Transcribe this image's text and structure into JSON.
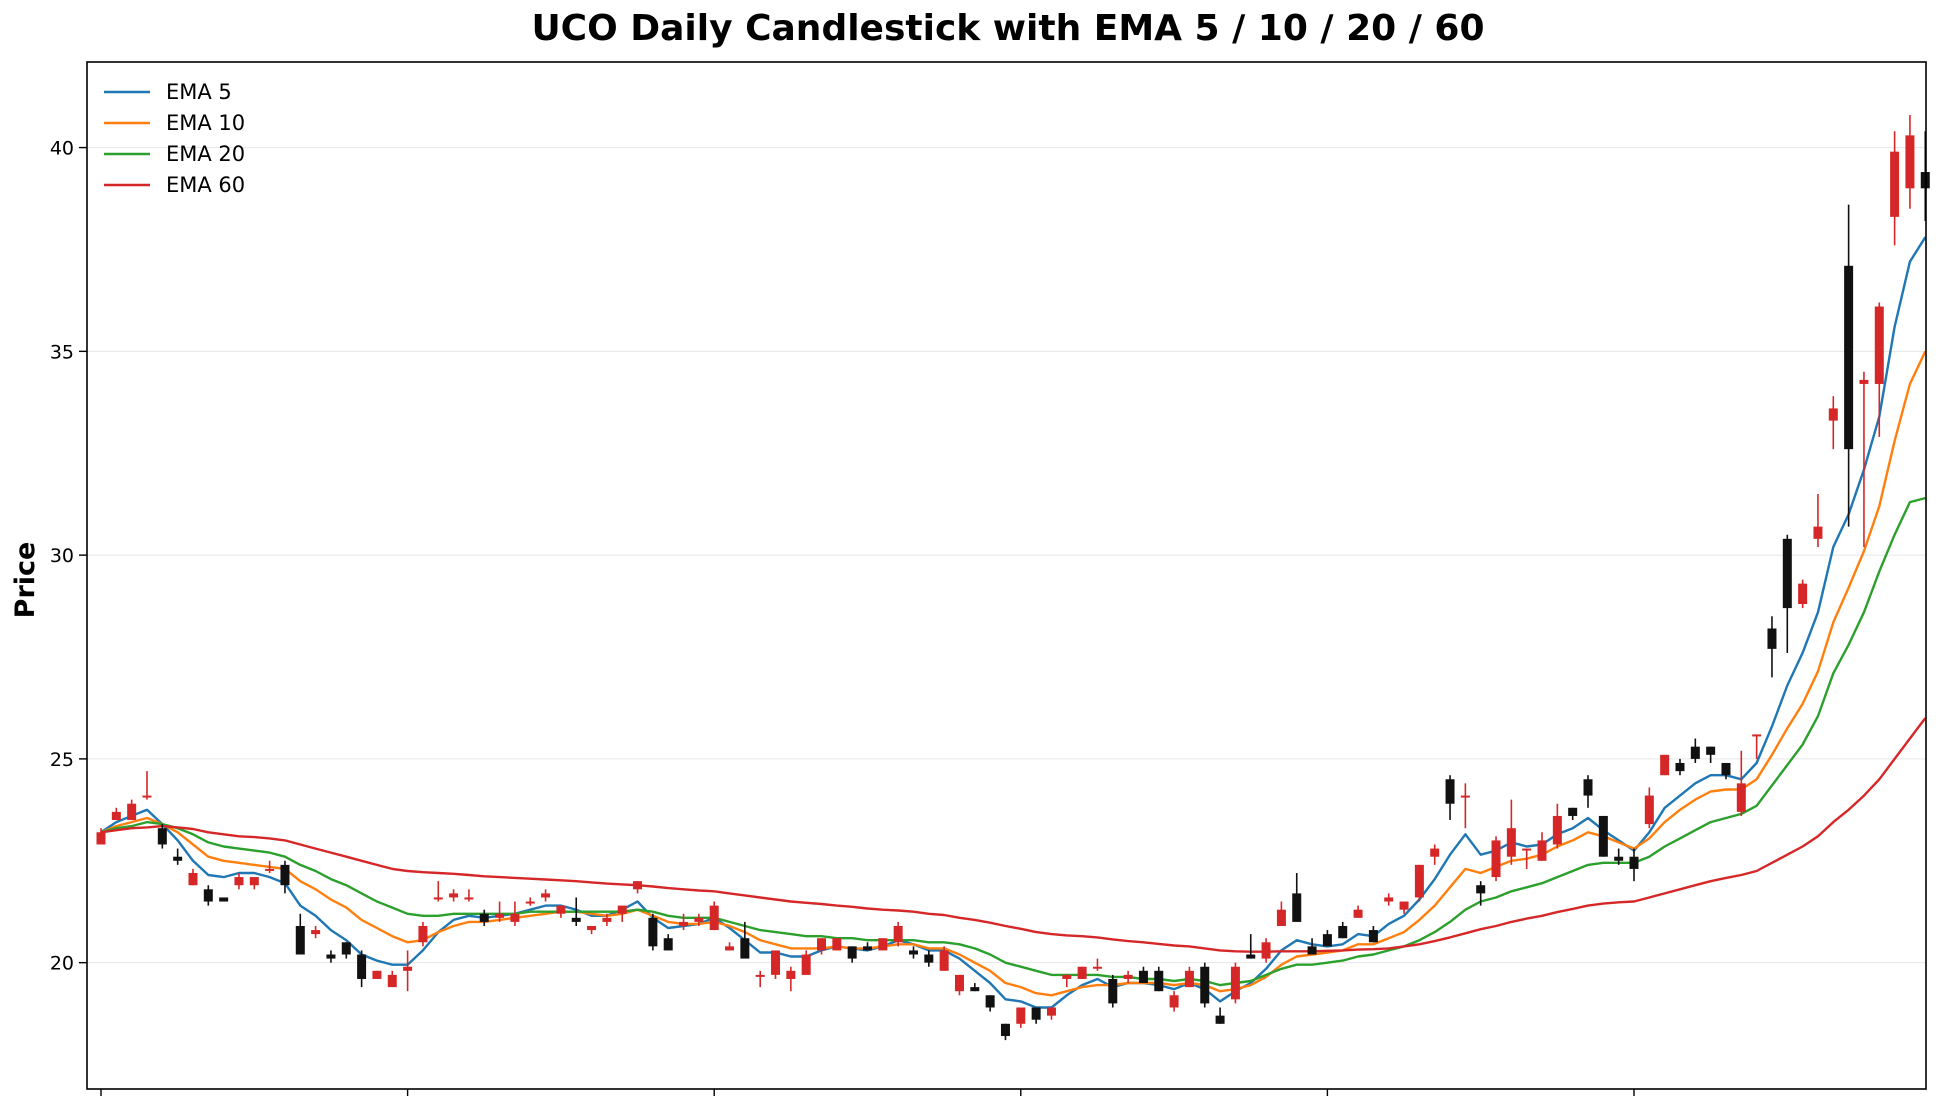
{
  "chart_data": {
    "type": "candlestick",
    "title": "UCO Daily Candlestick with EMA 5 / 10 / 20 / 60",
    "ylabel": "Price",
    "xlabel": "",
    "ylim": [
      16.9,
      42.1
    ],
    "yticks": [
      20,
      25,
      30,
      35,
      40
    ],
    "legend_position": "top-left",
    "grid": "horizontal",
    "up_color": "#d62728",
    "down_color": "#111111",
    "candles": [
      [
        22.9,
        23.3,
        22.9,
        23.2
      ],
      [
        23.5,
        23.8,
        23.5,
        23.7
      ],
      [
        23.5,
        24.0,
        23.5,
        23.9
      ],
      [
        24.1,
        24.7,
        24.0,
        24.1
      ],
      [
        23.3,
        23.4,
        22.8,
        22.9
      ],
      [
        22.6,
        22.8,
        22.4,
        22.5
      ],
      [
        21.9,
        22.3,
        21.9,
        22.2
      ],
      [
        21.8,
        21.9,
        21.4,
        21.5
      ],
      [
        21.6,
        21.6,
        21.5,
        21.5
      ],
      [
        21.9,
        22.2,
        21.8,
        22.1
      ],
      [
        21.9,
        22.1,
        21.8,
        22.1
      ],
      [
        22.3,
        22.5,
        22.2,
        22.3
      ],
      [
        22.4,
        22.5,
        21.7,
        21.9
      ],
      [
        20.9,
        21.2,
        20.2,
        20.2
      ],
      [
        20.7,
        20.9,
        20.6,
        20.8
      ],
      [
        20.2,
        20.3,
        20.0,
        20.1
      ],
      [
        20.5,
        20.5,
        20.1,
        20.2
      ],
      [
        20.2,
        20.3,
        19.4,
        19.6
      ],
      [
        19.6,
        19.8,
        19.6,
        19.8
      ],
      [
        19.4,
        19.8,
        19.4,
        19.7
      ],
      [
        19.8,
        20.3,
        19.3,
        19.9
      ],
      [
        20.5,
        21.0,
        20.4,
        20.9
      ],
      [
        21.6,
        22.0,
        21.5,
        21.6
      ],
      [
        21.6,
        21.8,
        21.5,
        21.7
      ],
      [
        21.6,
        21.8,
        21.5,
        21.6
      ],
      [
        21.2,
        21.3,
        20.9,
        21.0
      ],
      [
        21.1,
        21.5,
        21.0,
        21.2
      ],
      [
        21.0,
        21.5,
        20.9,
        21.2
      ],
      [
        21.5,
        21.6,
        21.4,
        21.5
      ],
      [
        21.6,
        21.8,
        21.5,
        21.7
      ],
      [
        21.2,
        21.4,
        21.1,
        21.4
      ],
      [
        21.1,
        21.6,
        20.9,
        21.0
      ],
      [
        20.8,
        20.9,
        20.7,
        20.9
      ],
      [
        21.0,
        21.2,
        20.9,
        21.1
      ],
      [
        21.2,
        21.4,
        21.0,
        21.4
      ],
      [
        21.8,
        22.0,
        21.7,
        22.0
      ],
      [
        21.1,
        21.2,
        20.3,
        20.4
      ],
      [
        20.6,
        20.7,
        20.3,
        20.3
      ],
      [
        20.9,
        21.2,
        20.8,
        21.0
      ],
      [
        21.0,
        21.2,
        20.9,
        21.1
      ],
      [
        20.8,
        21.5,
        20.8,
        21.4
      ],
      [
        20.3,
        20.5,
        20.3,
        20.4
      ],
      [
        20.6,
        21.0,
        20.2,
        20.1
      ],
      [
        19.7,
        19.8,
        19.4,
        19.7
      ],
      [
        19.7,
        20.3,
        19.6,
        20.3
      ],
      [
        19.6,
        19.9,
        19.3,
        19.8
      ],
      [
        19.7,
        20.3,
        19.7,
        20.2
      ],
      [
        20.3,
        20.6,
        20.2,
        20.6
      ],
      [
        20.3,
        20.6,
        20.3,
        20.6
      ],
      [
        20.4,
        20.4,
        20.0,
        20.1
      ],
      [
        20.4,
        20.5,
        20.3,
        20.3
      ],
      [
        20.3,
        20.6,
        20.3,
        20.6
      ],
      [
        20.5,
        21.0,
        20.4,
        20.9
      ],
      [
        20.3,
        20.4,
        20.1,
        20.2
      ],
      [
        20.2,
        20.3,
        19.9,
        20.0
      ],
      [
        19.8,
        20.4,
        19.8,
        20.3
      ],
      [
        19.3,
        19.7,
        19.2,
        19.7
      ],
      [
        19.4,
        19.5,
        19.3,
        19.3
      ],
      [
        19.2,
        19.2,
        18.8,
        18.9
      ],
      [
        18.5,
        18.5,
        18.1,
        18.2
      ],
      [
        18.5,
        18.9,
        18.4,
        18.9
      ],
      [
        18.9,
        18.9,
        18.5,
        18.6
      ],
      [
        18.7,
        18.9,
        18.6,
        18.9
      ],
      [
        19.6,
        19.7,
        19.4,
        19.7
      ],
      [
        19.6,
        19.9,
        19.6,
        19.9
      ],
      [
        19.9,
        20.1,
        19.8,
        19.9
      ],
      [
        19.6,
        19.7,
        18.9,
        19.0
      ],
      [
        19.6,
        19.8,
        19.5,
        19.7
      ],
      [
        19.8,
        19.9,
        19.5,
        19.5
      ],
      [
        19.8,
        19.9,
        19.3,
        19.3
      ],
      [
        18.9,
        19.3,
        18.8,
        19.2
      ],
      [
        19.4,
        19.9,
        19.4,
        19.8
      ],
      [
        19.9,
        20.0,
        18.9,
        19.0
      ],
      [
        18.7,
        18.9,
        18.5,
        18.5
      ],
      [
        19.1,
        20.0,
        19.0,
        19.9
      ],
      [
        20.2,
        20.7,
        20.1,
        20.1
      ],
      [
        20.1,
        20.6,
        20.0,
        20.5
      ],
      [
        20.9,
        21.5,
        20.9,
        21.3
      ],
      [
        21.7,
        22.2,
        21.0,
        21.0
      ],
      [
        20.4,
        20.6,
        20.2,
        20.2
      ],
      [
        20.7,
        20.8,
        20.4,
        20.4
      ],
      [
        20.9,
        21.0,
        20.6,
        20.6
      ],
      [
        21.1,
        21.4,
        21.1,
        21.3
      ],
      [
        20.8,
        20.9,
        20.5,
        20.5
      ],
      [
        21.5,
        21.7,
        21.4,
        21.6
      ],
      [
        21.3,
        21.5,
        21.2,
        21.5
      ],
      [
        21.6,
        22.4,
        21.5,
        22.4
      ],
      [
        22.6,
        22.9,
        22.4,
        22.8
      ],
      [
        24.5,
        24.6,
        23.5,
        23.9
      ],
      [
        24.1,
        24.4,
        23.3,
        24.1
      ],
      [
        21.9,
        22.0,
        21.4,
        21.7
      ],
      [
        22.1,
        23.1,
        22.0,
        23.0
      ],
      [
        22.6,
        24.0,
        22.4,
        23.3
      ],
      [
        22.8,
        22.8,
        22.3,
        22.8
      ],
      [
        22.5,
        23.2,
        22.5,
        23.0
      ],
      [
        22.9,
        23.9,
        22.8,
        23.6
      ],
      [
        23.8,
        23.8,
        23.5,
        23.6
      ],
      [
        24.5,
        24.6,
        23.8,
        24.1
      ],
      [
        23.6,
        23.6,
        22.6,
        22.6
      ],
      [
        22.6,
        22.8,
        22.4,
        22.5
      ],
      [
        22.6,
        22.8,
        22.0,
        22.3
      ],
      [
        23.4,
        24.3,
        23.3,
        24.1
      ],
      [
        24.6,
        25.1,
        24.6,
        25.1
      ],
      [
        24.9,
        25.0,
        24.6,
        24.7
      ],
      [
        25.3,
        25.5,
        24.9,
        25.0
      ],
      [
        25.3,
        25.3,
        24.9,
        25.1
      ],
      [
        24.9,
        24.9,
        24.5,
        24.6
      ],
      [
        23.7,
        25.2,
        23.6,
        24.4
      ],
      [
        25.6,
        25.6,
        25.0,
        25.6
      ],
      [
        28.2,
        28.5,
        27.0,
        27.7
      ],
      [
        30.4,
        30.5,
        27.6,
        28.7
      ],
      [
        28.8,
        29.4,
        28.7,
        29.3
      ],
      [
        30.4,
        31.5,
        30.2,
        30.7
      ],
      [
        33.3,
        33.9,
        32.6,
        33.6
      ],
      [
        37.1,
        38.6,
        30.7,
        32.6
      ],
      [
        34.2,
        34.5,
        30.2,
        34.3
      ],
      [
        34.2,
        36.2,
        32.9,
        36.1
      ],
      [
        38.3,
        40.4,
        37.6,
        39.9
      ],
      [
        39.0,
        40.8,
        38.5,
        40.3
      ],
      [
        39.4,
        40.4,
        38.2,
        39.0
      ]
    ],
    "series": [
      {
        "name": "EMA 5",
        "color": "#1f77b4",
        "values": [
          23.2,
          23.45,
          23.6,
          23.75,
          23.4,
          23.0,
          22.5,
          22.15,
          22.1,
          22.2,
          22.2,
          22.1,
          21.95,
          21.4,
          21.15,
          20.8,
          20.55,
          20.2,
          20.05,
          19.95,
          19.95,
          20.3,
          20.75,
          21.05,
          21.15,
          21.1,
          21.15,
          21.2,
          21.3,
          21.4,
          21.4,
          21.3,
          21.15,
          21.15,
          21.3,
          21.5,
          21.1,
          20.85,
          20.9,
          20.95,
          21.1,
          20.85,
          20.55,
          20.25,
          20.25,
          20.15,
          20.15,
          20.3,
          20.4,
          20.35,
          20.3,
          20.4,
          20.55,
          20.45,
          20.3,
          20.3,
          20.1,
          19.8,
          19.5,
          19.1,
          19.05,
          18.9,
          18.9,
          19.2,
          19.45,
          19.6,
          19.4,
          19.5,
          19.5,
          19.45,
          19.35,
          19.5,
          19.35,
          19.05,
          19.3,
          19.5,
          19.85,
          20.3,
          20.55,
          20.45,
          20.4,
          20.45,
          20.7,
          20.65,
          20.95,
          21.15,
          21.55,
          22.05,
          22.65,
          23.15,
          22.65,
          22.75,
          22.95,
          22.85,
          22.9,
          23.15,
          23.3,
          23.55,
          23.25,
          23.0,
          22.75,
          23.2,
          23.8,
          24.1,
          24.4,
          24.6,
          24.6,
          24.5,
          24.9,
          25.8,
          26.8,
          27.6,
          28.6,
          30.2,
          31.0,
          32.1,
          33.4,
          35.6,
          37.2,
          37.8
        ]
      },
      {
        "name": "EMA 10",
        "color": "#ff7f0e",
        "values": [
          23.2,
          23.35,
          23.45,
          23.55,
          23.4,
          23.2,
          22.9,
          22.6,
          22.5,
          22.45,
          22.4,
          22.35,
          22.3,
          22.0,
          21.8,
          21.55,
          21.35,
          21.05,
          20.85,
          20.65,
          20.5,
          20.55,
          20.75,
          20.9,
          21.0,
          21.0,
          21.05,
          21.1,
          21.15,
          21.2,
          21.25,
          21.25,
          21.2,
          21.15,
          21.2,
          21.3,
          21.15,
          21.0,
          20.95,
          20.95,
          21.0,
          20.9,
          20.75,
          20.55,
          20.45,
          20.35,
          20.35,
          20.35,
          20.4,
          20.35,
          20.35,
          20.4,
          20.45,
          20.45,
          20.35,
          20.35,
          20.2,
          20.0,
          19.8,
          19.5,
          19.4,
          19.25,
          19.2,
          19.3,
          19.4,
          19.45,
          19.45,
          19.5,
          19.5,
          19.5,
          19.45,
          19.5,
          19.45,
          19.3,
          19.35,
          19.45,
          19.65,
          19.95,
          20.15,
          20.2,
          20.25,
          20.3,
          20.45,
          20.45,
          20.6,
          20.75,
          21.05,
          21.4,
          21.85,
          22.3,
          22.2,
          22.35,
          22.5,
          22.55,
          22.65,
          22.85,
          23.0,
          23.2,
          23.1,
          22.95,
          22.8,
          23.05,
          23.45,
          23.75,
          24.0,
          24.2,
          24.25,
          24.25,
          24.5,
          25.1,
          25.75,
          26.35,
          27.15,
          28.35,
          29.2,
          30.1,
          31.2,
          32.8,
          34.2,
          35.0
        ]
      },
      {
        "name": "EMA 20",
        "color": "#2ca02c",
        "values": [
          23.2,
          23.3,
          23.35,
          23.45,
          23.4,
          23.3,
          23.15,
          22.95,
          22.85,
          22.8,
          22.75,
          22.7,
          22.6,
          22.4,
          22.25,
          22.05,
          21.9,
          21.7,
          21.5,
          21.35,
          21.2,
          21.15,
          21.15,
          21.2,
          21.2,
          21.2,
          21.2,
          21.2,
          21.25,
          21.25,
          21.25,
          21.25,
          21.25,
          21.25,
          21.25,
          21.3,
          21.25,
          21.15,
          21.1,
          21.1,
          21.1,
          21.0,
          20.9,
          20.8,
          20.75,
          20.7,
          20.65,
          20.65,
          20.6,
          20.6,
          20.55,
          20.55,
          20.55,
          20.55,
          20.5,
          20.5,
          20.45,
          20.35,
          20.2,
          20.0,
          19.9,
          19.8,
          19.7,
          19.7,
          19.7,
          19.7,
          19.65,
          19.65,
          19.6,
          19.6,
          19.55,
          19.6,
          19.55,
          19.45,
          19.5,
          19.55,
          19.7,
          19.85,
          19.95,
          19.95,
          20.0,
          20.05,
          20.15,
          20.2,
          20.3,
          20.4,
          20.55,
          20.75,
          21.0,
          21.3,
          21.5,
          21.6,
          21.75,
          21.85,
          21.95,
          22.1,
          22.25,
          22.4,
          22.45,
          22.45,
          22.45,
          22.6,
          22.85,
          23.05,
          23.25,
          23.45,
          23.55,
          23.65,
          23.85,
          24.35,
          24.85,
          25.35,
          26.05,
          27.1,
          27.8,
          28.6,
          29.6,
          30.5,
          31.3,
          31.4
        ]
      },
      {
        "name": "EMA 60",
        "color": "#d62728",
        "values": [
          23.2,
          23.25,
          23.3,
          23.32,
          23.35,
          23.32,
          23.28,
          23.2,
          23.15,
          23.1,
          23.08,
          23.05,
          23.0,
          22.9,
          22.8,
          22.7,
          22.6,
          22.5,
          22.4,
          22.3,
          22.25,
          22.22,
          22.2,
          22.18,
          22.15,
          22.12,
          22.1,
          22.08,
          22.06,
          22.04,
          22.02,
          22.0,
          21.97,
          21.94,
          21.92,
          21.9,
          21.87,
          21.83,
          21.8,
          21.77,
          21.75,
          21.7,
          21.65,
          21.6,
          21.55,
          21.5,
          21.47,
          21.44,
          21.4,
          21.37,
          21.33,
          21.3,
          21.28,
          21.25,
          21.2,
          21.17,
          21.1,
          21.05,
          20.98,
          20.9,
          20.83,
          20.75,
          20.7,
          20.67,
          20.65,
          20.62,
          20.57,
          20.53,
          20.5,
          20.46,
          20.42,
          20.4,
          20.35,
          20.3,
          20.28,
          20.27,
          20.27,
          20.28,
          20.28,
          20.28,
          20.29,
          20.3,
          20.32,
          20.33,
          20.35,
          20.4,
          20.45,
          20.53,
          20.62,
          20.72,
          20.82,
          20.9,
          21.0,
          21.08,
          21.15,
          21.24,
          21.32,
          21.4,
          21.45,
          21.48,
          21.5,
          21.6,
          21.7,
          21.8,
          21.9,
          22.0,
          22.08,
          22.15,
          22.25,
          22.45,
          22.65,
          22.85,
          23.1,
          23.45,
          23.75,
          24.1,
          24.5,
          25.0,
          25.5,
          26.0
        ]
      }
    ]
  }
}
